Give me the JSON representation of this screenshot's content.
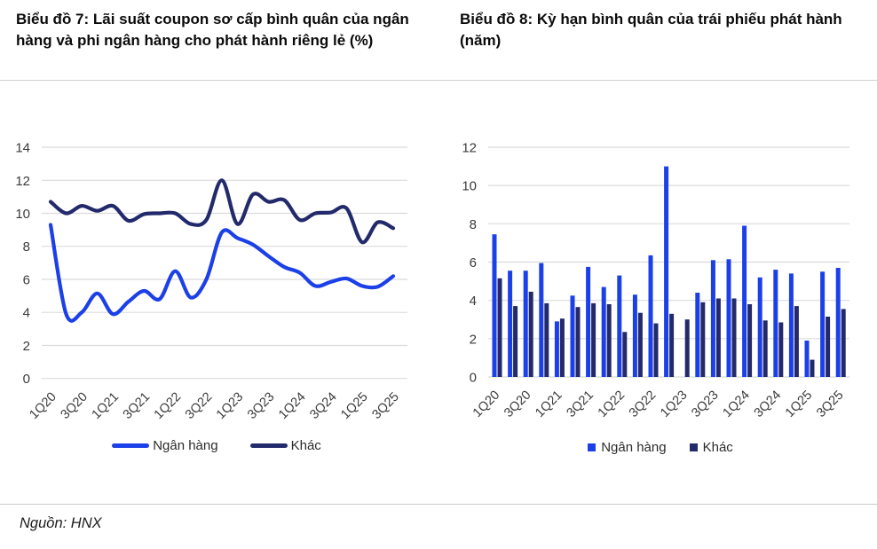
{
  "footer": {
    "source": "Nguồn: HNX"
  },
  "colors": {
    "bank_blue": "#1C40E8",
    "other_navy": "#232A6B",
    "gridline": "#DBDBDB",
    "axis_text": "#3B3B3B",
    "divider": "#CFCFCF"
  },
  "chart_data": [
    {
      "type": "line",
      "title": "Biểu đồ 7: Lãi suất coupon sơ cấp bình quân của ngân hàng và phi ngân hàng cho phát hành riêng lẻ (%)",
      "categories": [
        "1Q20",
        "2Q20",
        "3Q20",
        "4Q20",
        "1Q21",
        "2Q21",
        "3Q21",
        "4Q21",
        "1Q22",
        "2Q22",
        "3Q22",
        "4Q22",
        "1Q23",
        "2Q23",
        "3Q23",
        "4Q23",
        "1Q24",
        "2Q24",
        "3Q24",
        "4Q24",
        "1Q25",
        "2Q25",
        "3Q25"
      ],
      "x_tick_labels": [
        "1Q20",
        "3Q20",
        "1Q21",
        "3Q21",
        "1Q22",
        "3Q22",
        "1Q23",
        "3Q23",
        "1Q24",
        "3Q24",
        "1Q25",
        "3Q25"
      ],
      "series": [
        {
          "name": "Ngân hàng",
          "color": "#1C40E8",
          "values": [
            9.3,
            3.9,
            4.0,
            5.15,
            3.9,
            4.65,
            5.3,
            4.8,
            6.5,
            4.9,
            6.0,
            8.85,
            8.5,
            8.1,
            7.4,
            6.75,
            6.4,
            5.6,
            5.85,
            6.05,
            5.6,
            5.55,
            6.2
          ]
        },
        {
          "name": "Khác",
          "color": "#232A6B",
          "values": [
            10.7,
            10.0,
            10.45,
            10.15,
            10.45,
            9.55,
            9.95,
            10.0,
            10.0,
            9.35,
            9.6,
            12.0,
            9.35,
            11.15,
            10.7,
            10.8,
            9.6,
            10.0,
            10.05,
            10.3,
            8.25,
            9.45,
            9.1
          ]
        }
      ],
      "xlabel": "",
      "ylabel": "",
      "ylim": [
        0,
        14
      ],
      "yticks": [
        0,
        2,
        4,
        6,
        8,
        10,
        12,
        14
      ],
      "grid": true,
      "line_style": "smooth",
      "legend_position": "bottom"
    },
    {
      "type": "bar",
      "title": "Biểu đồ 8: Kỳ hạn bình quân của trái phiếu phát hành (năm)",
      "categories": [
        "1Q20",
        "2Q20",
        "3Q20",
        "4Q20",
        "1Q21",
        "2Q21",
        "3Q21",
        "4Q21",
        "1Q22",
        "2Q22",
        "3Q22",
        "4Q22",
        "1Q23",
        "2Q23",
        "3Q23",
        "4Q23",
        "1Q24",
        "2Q24",
        "3Q24",
        "4Q24",
        "1Q25",
        "2Q25",
        "3Q25"
      ],
      "x_tick_labels": [
        "1Q20",
        "3Q20",
        "1Q21",
        "3Q21",
        "1Q22",
        "3Q22",
        "1Q23",
        "3Q23",
        "1Q24",
        "3Q24",
        "1Q25",
        "3Q25"
      ],
      "series": [
        {
          "name": "Ngân hàng",
          "color": "#1C40E8",
          "values": [
            7.45,
            5.55,
            5.55,
            5.95,
            2.9,
            4.25,
            5.75,
            4.7,
            5.3,
            4.3,
            6.35,
            11.0,
            0,
            4.4,
            6.1,
            6.15,
            7.9,
            5.2,
            5.6,
            5.4,
            1.9,
            5.5,
            5.7
          ]
        },
        {
          "name": "Khác",
          "color": "#232A6B",
          "values": [
            5.15,
            3.7,
            4.45,
            3.85,
            3.05,
            3.65,
            3.85,
            3.8,
            2.35,
            3.35,
            2.8,
            3.3,
            3.0,
            3.9,
            4.1,
            4.1,
            3.8,
            2.95,
            2.85,
            3.7,
            0.9,
            3.15,
            3.55
          ]
        }
      ],
      "xlabel": "",
      "ylabel": "",
      "ylim": [
        0,
        12
      ],
      "yticks": [
        0,
        2,
        4,
        6,
        8,
        10,
        12
      ],
      "grid": true,
      "legend_position": "bottom"
    }
  ]
}
